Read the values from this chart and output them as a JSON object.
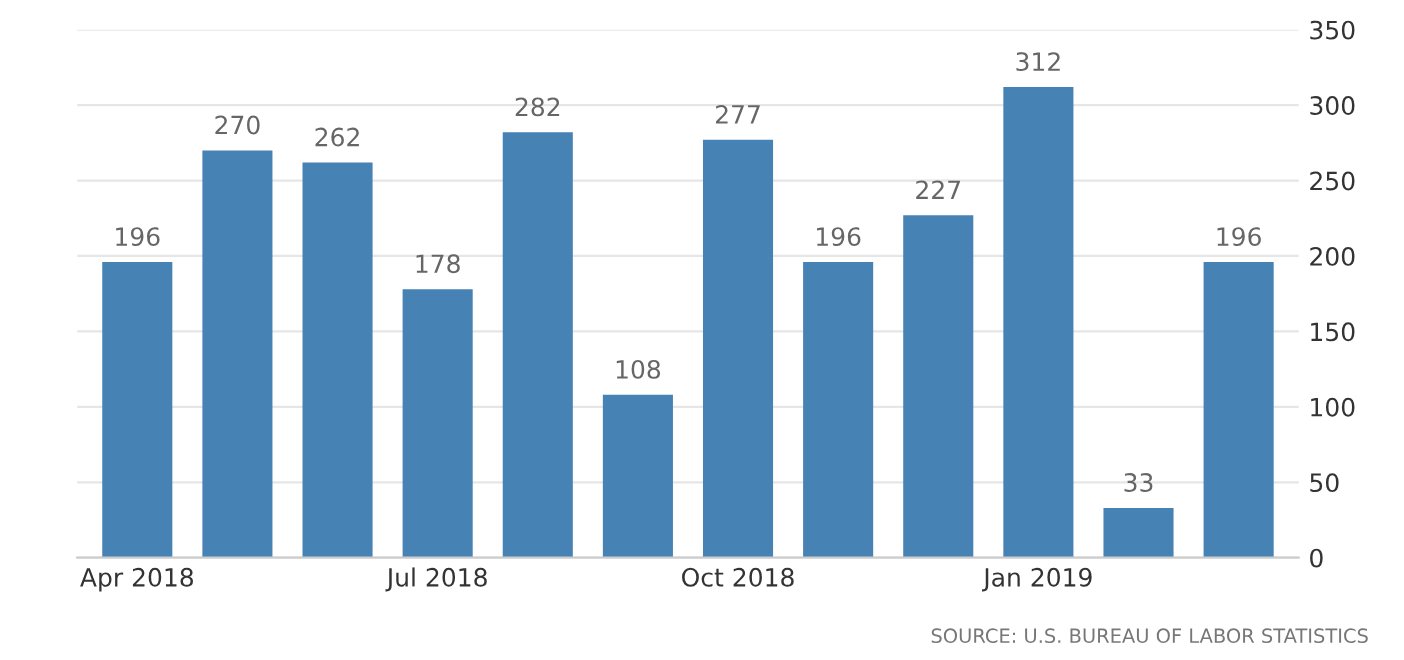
{
  "chart_data": {
    "type": "bar",
    "categories": [
      "Apr 2018",
      null,
      null,
      "Jul 2018",
      null,
      null,
      "Oct 2018",
      null,
      null,
      "Jan 2019",
      null,
      null
    ],
    "values": [
      196,
      270,
      262,
      178,
      282,
      108,
      277,
      196,
      227,
      312,
      33,
      196
    ],
    "color": "#4682b4",
    "ylim": [
      0,
      350
    ],
    "yticks": [
      0,
      50,
      100,
      150,
      200,
      250,
      300,
      350
    ],
    "grid": "y",
    "data_labels": true,
    "annotations": [
      "SOURCE: U.S. BUREAU OF LABOR STATISTICS"
    ]
  }
}
